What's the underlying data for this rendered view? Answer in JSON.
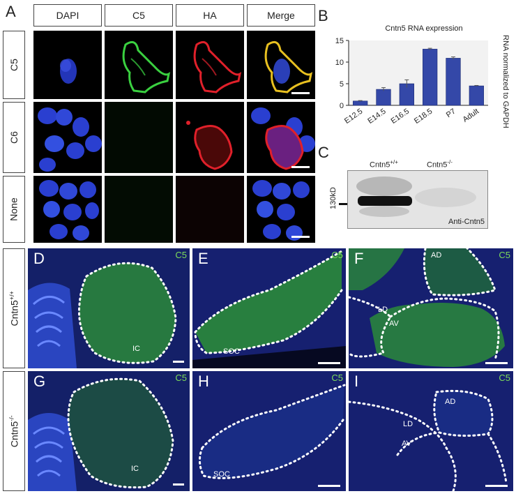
{
  "panel_letters": {
    "a": "A",
    "b": "B",
    "c": "C",
    "d": "D",
    "e": "E",
    "f": "F",
    "g": "G",
    "h": "H",
    "i": "I"
  },
  "panel_a": {
    "columns": [
      "DAPI",
      "C5",
      "HA",
      "Merge"
    ],
    "rows": [
      "C5",
      "C6",
      "None"
    ]
  },
  "chart_data": {
    "type": "bar",
    "title": "Cntn5 RNA expression",
    "ylabel": "RNA normalized to GAPDH",
    "categories": [
      "E12.5",
      "E14.5",
      "E16.5",
      "E18.5",
      "P7",
      "Adult"
    ],
    "values": [
      1.0,
      3.7,
      5.0,
      13.0,
      10.9,
      4.5
    ],
    "errors": [
      0.1,
      0.4,
      0.9,
      0.2,
      0.3,
      0.1
    ],
    "ylim": [
      0,
      15
    ],
    "yticks": [
      0,
      5,
      10,
      15
    ],
    "bar_color": "#3448a8"
  },
  "panel_c": {
    "lane1": "Cntn5",
    "lane1_sup": "+/+",
    "lane2": "Cntn5",
    "lane2_sup": "-/-",
    "marker": "130kD",
    "antibody": "Anti-Cntn5"
  },
  "tissue": {
    "stain": "C5",
    "row1_label": "Cntn5",
    "row1_sup": "+/+",
    "row2_label": "Cntn5",
    "row2_sup": "-/-",
    "ic": "IC",
    "soc": "SOC",
    "ad": "AD",
    "ld": "LD",
    "av": "AV"
  },
  "colors": {
    "dapi": "#2a3fd0",
    "c5": "#39c43a",
    "ha": "#e0202a",
    "c5_label": "#7ddc5a"
  }
}
